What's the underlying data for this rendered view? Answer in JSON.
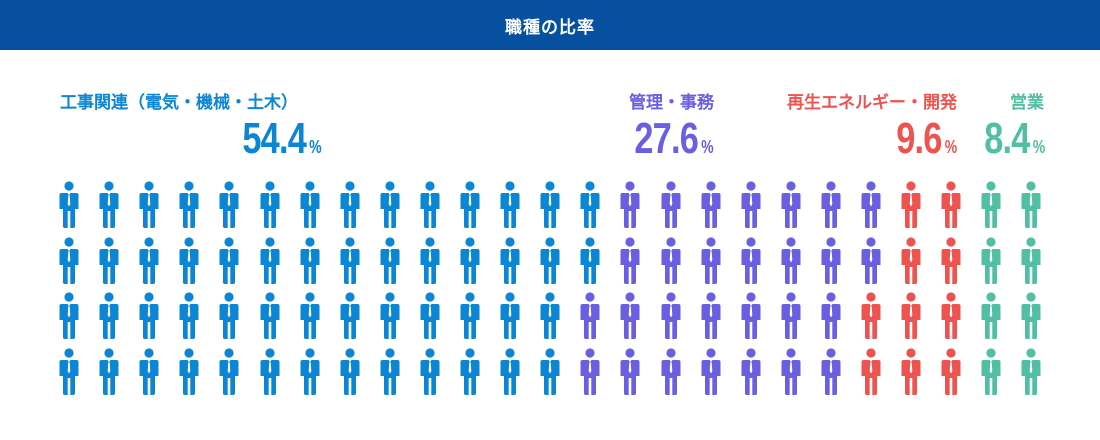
{
  "title": "職種の比率",
  "chart_data": {
    "type": "pictogram",
    "title": "職種の比率",
    "columns": 25,
    "rows": 4,
    "total_icons": 100,
    "unit": "%",
    "categories": [
      {
        "key": "engineering",
        "name": "工事関連（電気・機械・土木）",
        "value": "54.4",
        "percent": 54.4,
        "icons": 54,
        "color": "#0b86d4"
      },
      {
        "key": "admin",
        "name": "管理・事務",
        "value": "27.6",
        "percent": 27.6,
        "icons": 28,
        "color": "#6a5fe0"
      },
      {
        "key": "energy",
        "name": "再生エネルギー・開発",
        "value": "9.6",
        "percent": 9.6,
        "icons": 10,
        "color": "#ef5350"
      },
      {
        "key": "sales",
        "name": "営業",
        "value": "8.4",
        "percent": 8.4,
        "icons": 8,
        "color": "#50bfa3"
      }
    ]
  }
}
